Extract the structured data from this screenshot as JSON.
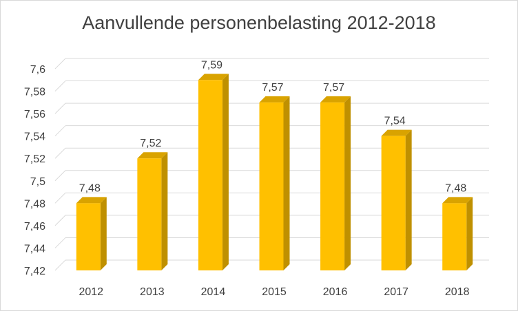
{
  "chart_data": {
    "type": "bar",
    "title": "Aanvullende personenbelasting 2012-2018",
    "xlabel": "",
    "ylabel": "",
    "categories": [
      "2012",
      "2013",
      "2014",
      "2015",
      "2016",
      "2017",
      "2018"
    ],
    "values": [
      7.48,
      7.52,
      7.59,
      7.57,
      7.57,
      7.54,
      7.48
    ],
    "value_labels": [
      "7,48",
      "7,52",
      "7,59",
      "7,57",
      "7,57",
      "7,54",
      "7,48"
    ],
    "ylim": [
      7.42,
      7.6
    ],
    "yticks": [
      7.42,
      7.44,
      7.46,
      7.48,
      7.5,
      7.52,
      7.54,
      7.56,
      7.58,
      7.6
    ],
    "ytick_labels": [
      "7,42",
      "7,44",
      "7,46",
      "7,48",
      "7,5",
      "7,52",
      "7,54",
      "7,56",
      "7,58",
      "7,6"
    ],
    "grid": true,
    "legend": "none",
    "style": "3d-column",
    "colors": {
      "bar_front": "#FFC000",
      "bar_side": "#BF9000",
      "bar_top": "#D9A300",
      "grid": "#d9d9d9",
      "text": "#404040"
    }
  }
}
